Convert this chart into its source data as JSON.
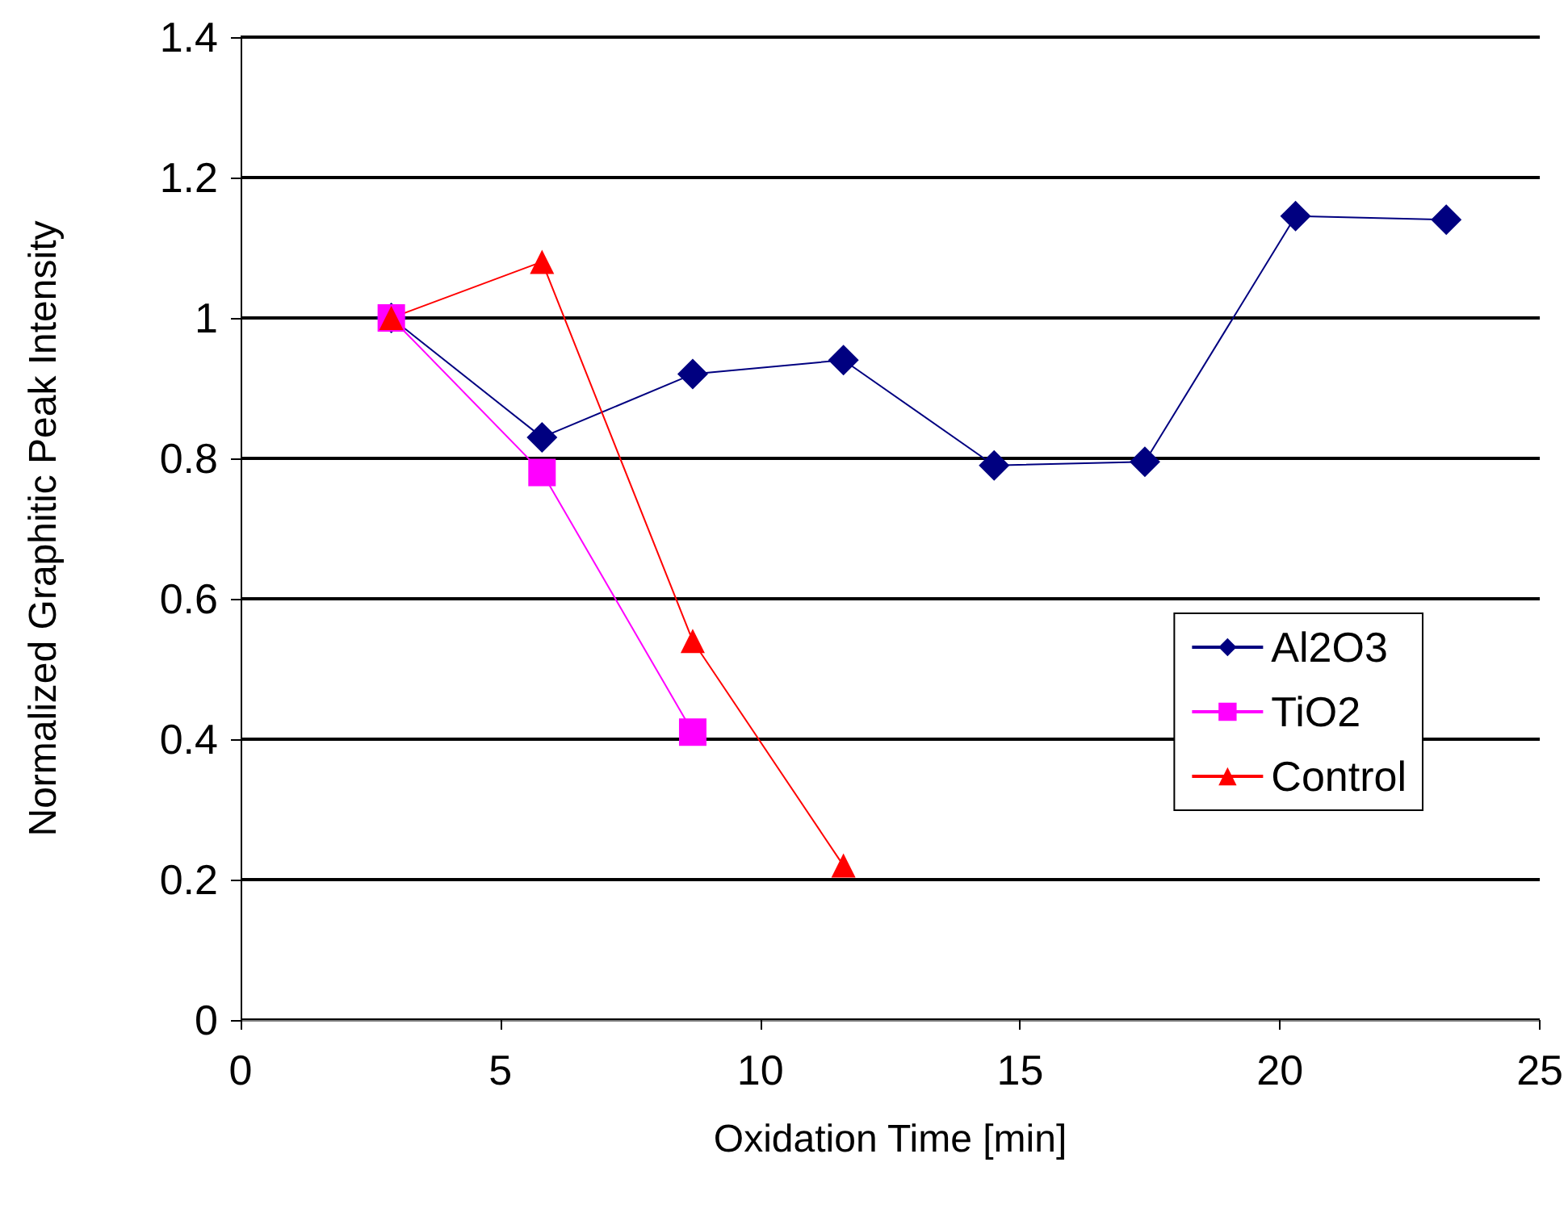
{
  "chart_data": {
    "type": "line",
    "xlabel": "Oxidation Time [min]",
    "ylabel": "Normalized Graphitic Peak Intensity",
    "xlim": [
      0,
      25
    ],
    "xticks": [
      0,
      5,
      10,
      15,
      20,
      25
    ],
    "ylim": [
      0,
      1.4
    ],
    "yticks": [
      0,
      0.2,
      0.4,
      0.6,
      0.8,
      1,
      1.2,
      1.4
    ],
    "grid": "y",
    "legend": "right",
    "series": [
      {
        "name": "Al2O3",
        "color": "#000080",
        "marker": "diamond",
        "x": [
          2.9,
          5.8,
          8.7,
          11.6,
          14.5,
          17.4,
          20.3,
          23.2
        ],
        "values": [
          1.0,
          0.83,
          0.92,
          0.94,
          0.79,
          0.795,
          1.145,
          1.14
        ]
      },
      {
        "name": "TiO2",
        "color": "#ff00ff",
        "marker": "square",
        "x": [
          2.9,
          5.8,
          8.7
        ],
        "values": [
          1.0,
          0.78,
          0.41
        ]
      },
      {
        "name": "Control",
        "color": "#ff0000",
        "marker": "triangle",
        "x": [
          2.9,
          5.8,
          8.7,
          11.6
        ],
        "values": [
          1.0,
          1.08,
          0.54,
          0.22
        ]
      }
    ]
  }
}
